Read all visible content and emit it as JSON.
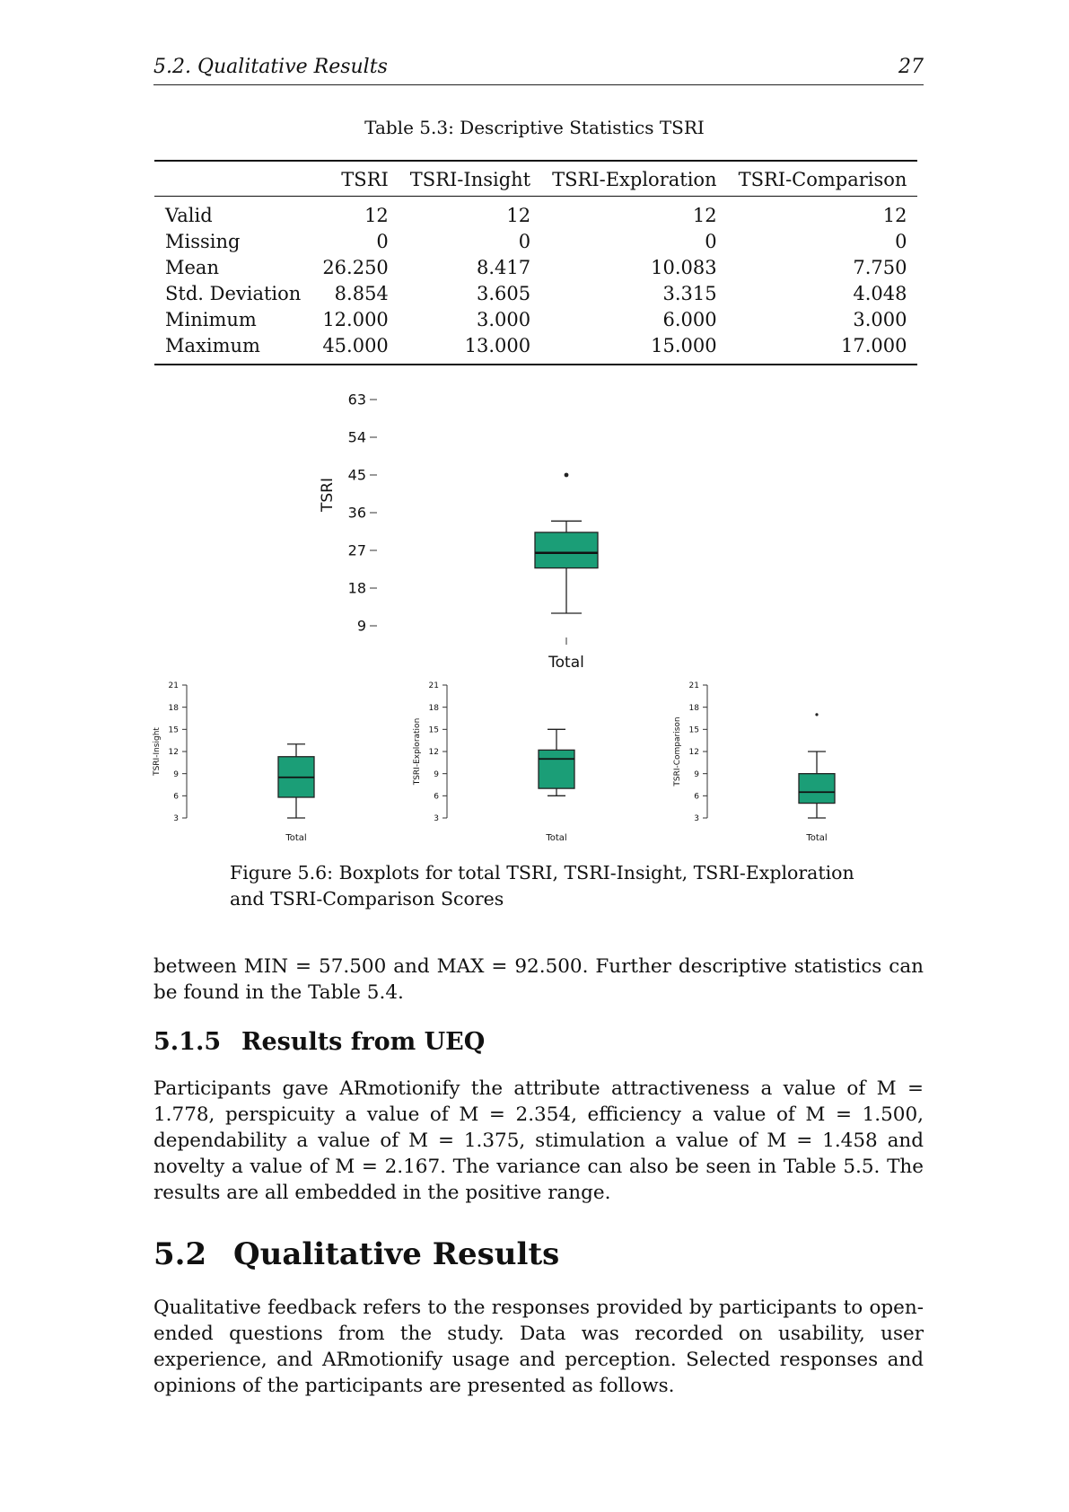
{
  "header": {
    "section": "5.2.   Qualitative Results",
    "page_number": "27"
  },
  "table": {
    "caption": "Table 5.3: Descriptive Statistics TSRI",
    "columns": [
      "",
      "TSRI",
      "TSRI-Insight",
      "TSRI-Exploration",
      "TSRI-Comparison"
    ],
    "rows": [
      [
        "Valid",
        "12",
        "12",
        "12",
        "12"
      ],
      [
        "Missing",
        "0",
        "0",
        "0",
        "0"
      ],
      [
        "Mean",
        "26.250",
        "8.417",
        "10.083",
        "7.750"
      ],
      [
        "Std. Deviation",
        "8.854",
        "3.605",
        "3.315",
        "4.048"
      ],
      [
        "Minimum",
        "12.000",
        "3.000",
        "6.000",
        "3.000"
      ],
      [
        "Maximum",
        "45.000",
        "13.000",
        "15.000",
        "17.000"
      ]
    ]
  },
  "chart_data": [
    {
      "type": "boxplot",
      "ylabel": "TSRI",
      "xlabel": "Total",
      "yticks": [
        9,
        18,
        27,
        36,
        45,
        54,
        63
      ],
      "ylim": [
        9,
        63
      ],
      "color": "#1b9e77",
      "box": {
        "whisker_low": 12,
        "q1": 22.8,
        "median": 26.4,
        "q3": 31.3,
        "whisker_high": 34,
        "outliers": [
          45
        ]
      }
    },
    {
      "type": "boxplot",
      "ylabel": "TSRI-Insight",
      "xlabel": "Total",
      "yticks": [
        3,
        6,
        9,
        12,
        15,
        18,
        21
      ],
      "ylim": [
        3,
        21
      ],
      "color": "#1b9e77",
      "box": {
        "whisker_low": 3,
        "q1": 5.8,
        "median": 8.5,
        "q3": 11.3,
        "whisker_high": 13,
        "outliers": []
      }
    },
    {
      "type": "boxplot",
      "ylabel": "TSRI-Exploration",
      "xlabel": "Total",
      "yticks": [
        3,
        6,
        9,
        12,
        15,
        18,
        21
      ],
      "ylim": [
        3,
        21
      ],
      "color": "#1b9e77",
      "box": {
        "whisker_low": 6,
        "q1": 7,
        "median": 11,
        "q3": 12.2,
        "whisker_high": 15,
        "outliers": []
      }
    },
    {
      "type": "boxplot",
      "ylabel": "TSRI-Comparison",
      "xlabel": "Total",
      "yticks": [
        3,
        6,
        9,
        12,
        15,
        18,
        21
      ],
      "ylim": [
        3,
        21
      ],
      "color": "#1b9e77",
      "box": {
        "whisker_low": 3,
        "q1": 5,
        "median": 6.5,
        "q3": 9,
        "whisker_high": 12,
        "outliers": [
          17
        ]
      }
    }
  ],
  "figure": {
    "caption_line1": "Figure 5.6: Boxplots for total TSRI, TSRI-Insight, TSRI-Exploration",
    "caption_line2": "and TSRI-Comparison Scores"
  },
  "body": {
    "para1": "between MIN = 57.500 and MAX = 92.500. Further descriptive statistics can be found in the Table 5.4.",
    "subsection_number": "5.1.5",
    "subsection_title": "Results from UEQ",
    "para2": "Participants gave ARmotionify the attribute attractiveness a value of M = 1.778, perspicuity a value of M = 2.354, efficiency a value of M = 1.500, dependability a value of M = 1.375, stimulation a value of M = 1.458 and novelty a value of M = 2.167. The variance can also be seen in Table 5.5. The results are all embedded in the positive range.",
    "section_number": "5.2",
    "section_title": "Qualitative Results",
    "para3": "Qualitative feedback refers to the responses provided by participants to open-ended questions from the study. Data was recorded on usability, user experience, and ARmotionify usage and perception. Selected responses and opinions of the participants are presented as follows."
  }
}
